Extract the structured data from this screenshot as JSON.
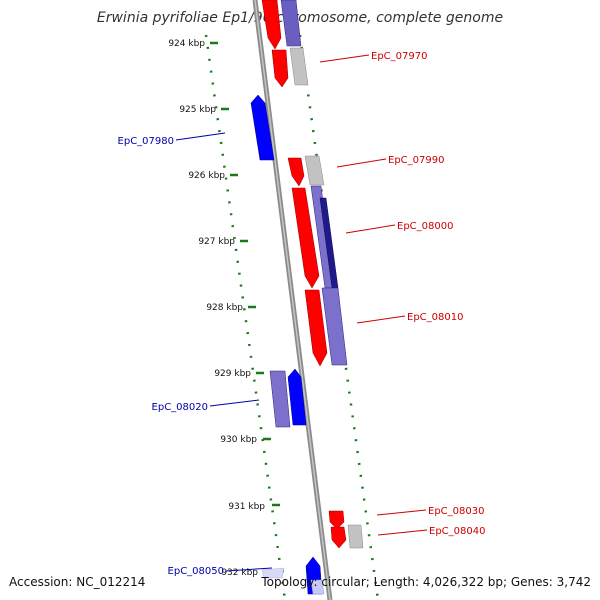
{
  "title": "Erwinia pyrifoliae Ep1/96 chromosome, complete genome",
  "accession": "Accession: NC_012214",
  "summary": "Topology: circular; Length: 4,026,322 bp; Genes: 3,742",
  "colors": {
    "forward": "#ff0000",
    "reverse": "#0000ff",
    "reverse_pale": "#7b70cc",
    "reverse_dark": "#1f1a8c",
    "grey": "#bdbdbd",
    "tick": "#1a7a1a",
    "backbone": "#8c8c8c"
  },
  "ticks": [
    {
      "label": "924 kbp",
      "kbp": 924
    },
    {
      "label": "925 kbp",
      "kbp": 925
    },
    {
      "label": "926 kbp",
      "kbp": 926
    },
    {
      "label": "927 kbp",
      "kbp": 927
    },
    {
      "label": "928 kbp",
      "kbp": 928
    },
    {
      "label": "929 kbp",
      "kbp": 929
    },
    {
      "label": "930 kbp",
      "kbp": 930
    },
    {
      "label": "931 kbp",
      "kbp": 931
    },
    {
      "label": "932 kbp",
      "kbp": 932
    }
  ],
  "gene_labels": [
    {
      "text": "EpC_07970",
      "strand": "forward"
    },
    {
      "text": "EpC_07980",
      "strand": "reverse"
    },
    {
      "text": "EpC_07990",
      "strand": "forward"
    },
    {
      "text": "EpC_08000",
      "strand": "forward"
    },
    {
      "text": "EpC_08010",
      "strand": "forward"
    },
    {
      "text": "EpC_08020",
      "strand": "reverse"
    },
    {
      "text": "EpC_08030",
      "strand": "forward"
    },
    {
      "text": "EpC_08040",
      "strand": "forward"
    },
    {
      "text": "EpC_08050",
      "strand": "reverse"
    }
  ]
}
